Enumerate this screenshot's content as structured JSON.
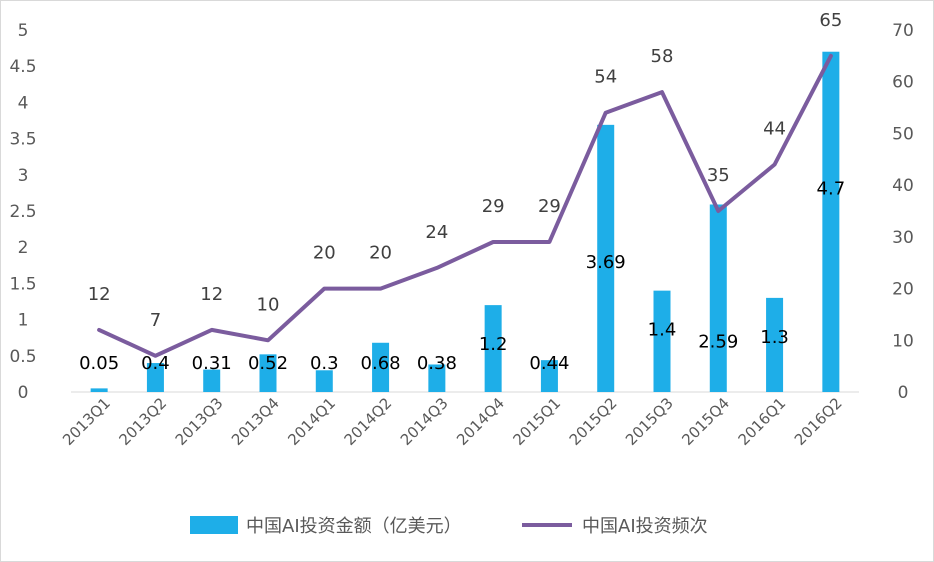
{
  "chart_data": {
    "type": "bar+line",
    "categories": [
      "2013Q1",
      "2013Q2",
      "2013Q3",
      "2013Q4",
      "2014Q1",
      "2014Q2",
      "2014Q3",
      "2014Q4",
      "2015Q1",
      "2015Q2",
      "2015Q3",
      "2015Q4",
      "2016Q1",
      "2016Q2"
    ],
    "series": [
      {
        "name": "中国AI投资金额（亿美元）",
        "type": "bar",
        "axis": "left",
        "color": "#1EAEE8",
        "values": [
          0.05,
          0.4,
          0.31,
          0.52,
          0.3,
          0.68,
          0.38,
          1.2,
          0.44,
          3.69,
          1.4,
          2.59,
          1.3,
          4.7
        ],
        "labels": [
          "0.05",
          "0.4",
          "0.31",
          "0.52",
          "0.3",
          "0.68",
          "0.38",
          "1.2",
          "0.44",
          "3.69",
          "1.4",
          "2.59",
          "1.3",
          "4.7"
        ]
      },
      {
        "name": "中国AI投资频次",
        "type": "line",
        "axis": "right",
        "color": "#7B5C9E",
        "values": [
          12,
          7,
          12,
          10,
          20,
          20,
          24,
          29,
          29,
          54,
          58,
          35,
          44,
          65
        ],
        "labels": [
          "12",
          "7",
          "12",
          "10",
          "20",
          "20",
          "24",
          "29",
          "29",
          "54",
          "58",
          "35",
          "44",
          "65"
        ]
      }
    ],
    "left_axis": {
      "min": 0,
      "max": 5,
      "ticks": [
        "0",
        "0.5",
        "1",
        "1.5",
        "2",
        "2.5",
        "3",
        "3.5",
        "4",
        "4.5",
        "5"
      ]
    },
    "right_axis": {
      "min": 0,
      "max": 70,
      "ticks": [
        "0",
        "10",
        "20",
        "30",
        "40",
        "50",
        "60",
        "70"
      ]
    },
    "grid": false,
    "legend_position": "bottom"
  }
}
